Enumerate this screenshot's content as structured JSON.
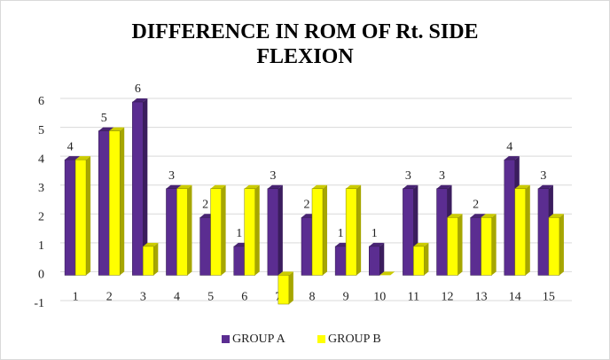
{
  "chart_data": {
    "type": "bar",
    "title": "DIFFERENCE IN ROM OF Rt. SIDE FLEXION",
    "categories": [
      "1",
      "2",
      "3",
      "4",
      "5",
      "6",
      "7",
      "8",
      "9",
      "10",
      "11",
      "12",
      "13",
      "14",
      "15"
    ],
    "series": [
      {
        "name": "GROUP A",
        "color": "#5b2d91",
        "values": [
          4,
          5,
          6,
          3,
          2,
          1,
          3,
          2,
          1,
          1,
          3,
          3,
          2,
          4,
          3
        ]
      },
      {
        "name": "GROUP B",
        "color": "#ffff00",
        "values": [
          4,
          5,
          1,
          3,
          3,
          3,
          -1,
          3,
          3,
          0,
          1,
          2,
          2,
          3,
          2
        ]
      }
    ],
    "data_labels_series": 0,
    "ylim": [
      -1,
      6
    ],
    "yticks": [
      -1,
      0,
      1,
      2,
      3,
      4,
      5,
      6
    ],
    "grid": true,
    "legend": "bottom"
  }
}
